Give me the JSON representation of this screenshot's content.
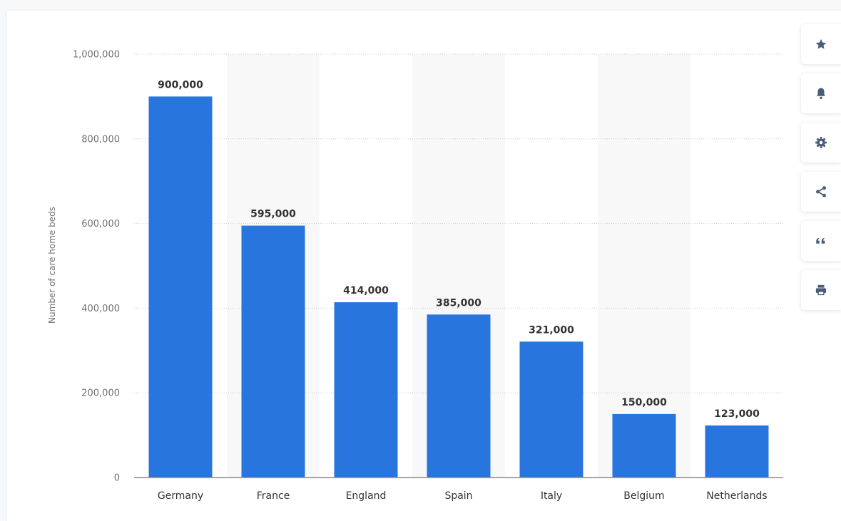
{
  "chart_data": {
    "type": "bar",
    "categories": [
      "Germany",
      "France",
      "England",
      "Spain",
      "Italy",
      "Belgium",
      "Netherlands"
    ],
    "values": [
      900000,
      595000,
      414000,
      385000,
      321000,
      150000,
      123000
    ],
    "value_labels": [
      "900,000",
      "595,000",
      "414,000",
      "385,000",
      "321,000",
      "150,000",
      "123,000"
    ],
    "ylabel": "Number of care home beds",
    "xlabel": "",
    "ylim": [
      0,
      1000000
    ],
    "yticks": [
      0,
      200000,
      400000,
      600000,
      800000,
      1000000
    ],
    "ytick_labels": [
      "0",
      "200,000",
      "400,000",
      "600,000",
      "800,000",
      "1,000,000"
    ],
    "bar_color": "#2876dd",
    "alt_band_color": "#f8f8f9",
    "grid": true,
    "legend": "none"
  },
  "toolbar": {
    "items": [
      {
        "name": "star-icon"
      },
      {
        "name": "bell-icon"
      },
      {
        "name": "gear-icon"
      },
      {
        "name": "share-icon"
      },
      {
        "name": "quote-icon"
      },
      {
        "name": "print-icon"
      }
    ],
    "icon_color": "#4a5d78"
  }
}
